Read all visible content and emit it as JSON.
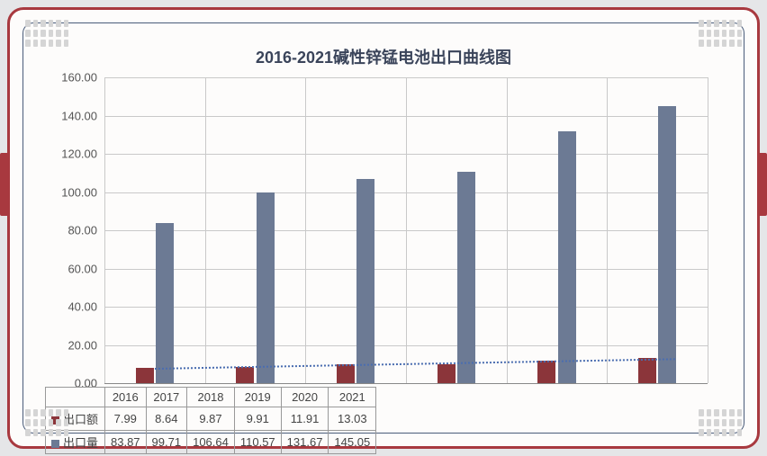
{
  "title": "2016-2021碱性锌锰电池出口曲线图",
  "title_fontsize": 18,
  "chart": {
    "type": "bar",
    "categories": [
      "2016",
      "2017",
      "2018",
      "2019",
      "2020",
      "2021"
    ],
    "series": [
      {
        "name": "出口额",
        "color": "#8b353a",
        "values": [
          7.99,
          8.64,
          9.87,
          9.91,
          11.91,
          13.03
        ]
      },
      {
        "name": "出口量",
        "color": "#6c7a94",
        "values": [
          83.87,
          99.71,
          106.64,
          110.57,
          131.67,
          145.05
        ]
      }
    ],
    "ylim": [
      0,
      160
    ],
    "ytick_step": 20,
    "ytick_labels": [
      "0.00",
      "20.00",
      "40.00",
      "60.00",
      "80.00",
      "100.00",
      "120.00",
      "140.00",
      "160.00"
    ],
    "grid_color": "#c9c9c9",
    "background_color": "#fdfcfb",
    "bar_width": 0.18,
    "bar_gap": 0.02,
    "label_fontsize": 13,
    "trend_line_color": "#4a6db0"
  },
  "frame": {
    "outer_border_color": "#a8393f",
    "inner_border_color": "#4a5c7a",
    "corner_dot_color": "#d5d5d5"
  }
}
